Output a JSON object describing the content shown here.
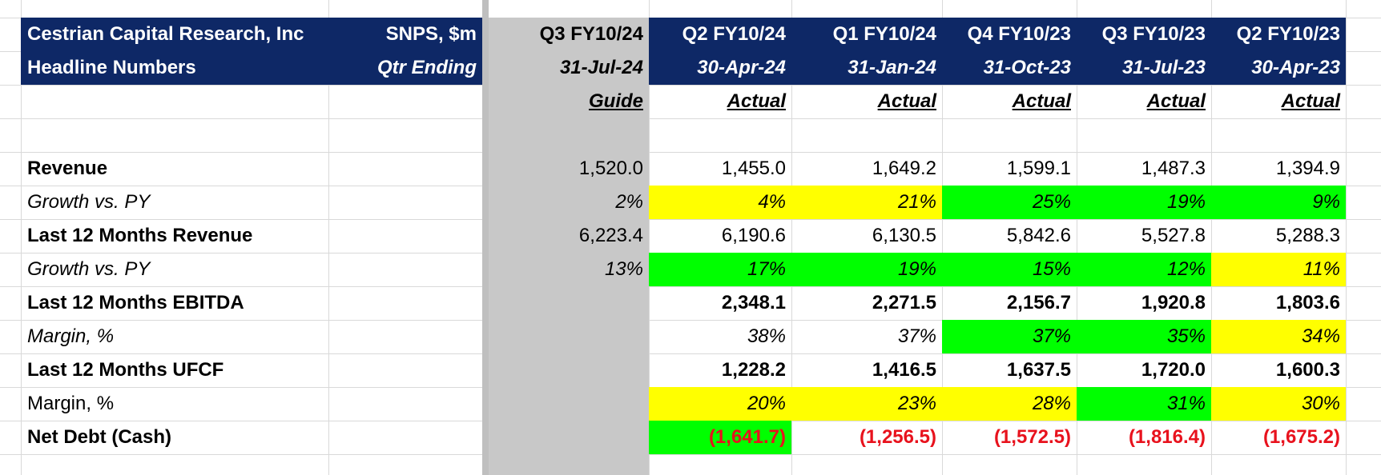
{
  "colors": {
    "header_bg": "#0e2866",
    "header_text": "#ffffff",
    "guide_column_bg": "#c8c8c8",
    "highlight_yellow": "#ffff00",
    "highlight_green": "#00ff00",
    "negative_text": "#e8121d",
    "gridline": "#d9d9d9"
  },
  "header": {
    "company": "Cestrian Capital Research, Inc",
    "subtitle": "Headline Numbers",
    "ticker_units": "SNPS, $m",
    "qtr_ending": "Qtr Ending"
  },
  "columns": [
    {
      "quarter": "Q3 FY10/24",
      "date": "31-Jul-24",
      "status": "Guide"
    },
    {
      "quarter": "Q2 FY10/24",
      "date": "30-Apr-24",
      "status": "Actual"
    },
    {
      "quarter": "Q1 FY10/24",
      "date": "31-Jan-24",
      "status": "Actual"
    },
    {
      "quarter": "Q4 FY10/23",
      "date": "31-Oct-23",
      "status": "Actual"
    },
    {
      "quarter": "Q3 FY10/23",
      "date": "31-Jul-23",
      "status": "Actual"
    },
    {
      "quarter": "Q2 FY10/23",
      "date": "30-Apr-23",
      "status": "Actual"
    }
  ],
  "rows": [
    {
      "label": "Revenue",
      "style": "bold",
      "values": [
        "1,520.0",
        "1,455.0",
        "1,649.2",
        "1,599.1",
        "1,487.3",
        "1,394.9"
      ],
      "highlights": [
        "none",
        "none",
        "none",
        "none",
        "none",
        "none"
      ]
    },
    {
      "label": "Growth vs. PY",
      "style": "italic",
      "values": [
        "2%",
        "4%",
        "21%",
        "25%",
        "19%",
        "9%"
      ],
      "highlights": [
        "none",
        "yellow",
        "yellow",
        "green",
        "green",
        "green"
      ]
    },
    {
      "label": "Last 12 Months Revenue",
      "style": "bold",
      "values": [
        "6,223.4",
        "6,190.6",
        "6,130.5",
        "5,842.6",
        "5,527.8",
        "5,288.3"
      ],
      "highlights": [
        "none",
        "none",
        "none",
        "none",
        "none",
        "none"
      ]
    },
    {
      "label": "Growth vs. PY",
      "style": "italic",
      "values": [
        "13%",
        "17%",
        "19%",
        "15%",
        "12%",
        "11%"
      ],
      "highlights": [
        "none",
        "green",
        "green",
        "green",
        "green",
        "yellow"
      ]
    },
    {
      "label": "Last 12 Months EBITDA",
      "style": "bold",
      "values": [
        "",
        "2,348.1",
        "2,271.5",
        "2,156.7",
        "1,920.8",
        "1,803.6"
      ],
      "highlights": [
        "none",
        "none",
        "none",
        "none",
        "none",
        "none"
      ]
    },
    {
      "label": "Margin, %",
      "style": "italic",
      "values": [
        "",
        "38%",
        "37%",
        "37%",
        "35%",
        "34%"
      ],
      "highlights": [
        "none",
        "none",
        "none",
        "green",
        "green",
        "yellow"
      ]
    },
    {
      "label": "Last 12 Months UFCF",
      "style": "bold",
      "values": [
        "",
        "1,228.2",
        "1,416.5",
        "1,637.5",
        "1,720.0",
        "1,600.3"
      ],
      "highlights": [
        "none",
        "none",
        "none",
        "none",
        "none",
        "none"
      ]
    },
    {
      "label": "Margin, %",
      "style": "plain",
      "values": [
        "",
        "20%",
        "23%",
        "28%",
        "31%",
        "30%"
      ],
      "highlights": [
        "none",
        "yellow",
        "yellow",
        "yellow",
        "green",
        "yellow"
      ]
    },
    {
      "label": "Net Debt (Cash)",
      "style": "bold",
      "values": [
        "",
        "(1,641.7)",
        "(1,256.5)",
        "(1,572.5)",
        "(1,816.4)",
        "(1,675.2)"
      ],
      "highlights": [
        "none",
        "green",
        "none",
        "none",
        "none",
        "none"
      ]
    }
  ]
}
